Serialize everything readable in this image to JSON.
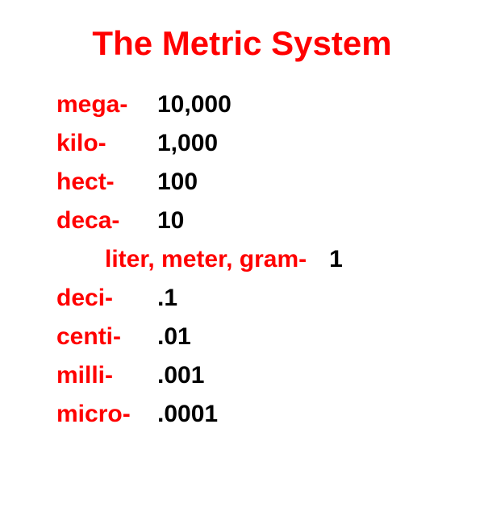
{
  "title": "The Metric System",
  "colors": {
    "prefix": "#ff0000",
    "value": "#000000",
    "background": "#ffffff"
  },
  "typography": {
    "title_fontsize": 42,
    "row_fontsize": 30,
    "font_weight": "bold",
    "font_family": "Arial"
  },
  "rows": [
    {
      "prefix": "mega-",
      "value": "10,000"
    },
    {
      "prefix": "kilo-",
      "value": "1,000"
    },
    {
      "prefix": "hect-",
      "value": "100"
    },
    {
      "prefix": "deca-",
      "value": "10"
    }
  ],
  "base": {
    "label": "liter, meter, gram-",
    "value": "1"
  },
  "rows_lower": [
    {
      "prefix": "deci-",
      "value": ".1"
    },
    {
      "prefix": "centi-",
      "value": ".01"
    },
    {
      "prefix": "milli-",
      "value": ".001"
    },
    {
      "prefix": "micro-",
      "value": ".0001"
    }
  ]
}
